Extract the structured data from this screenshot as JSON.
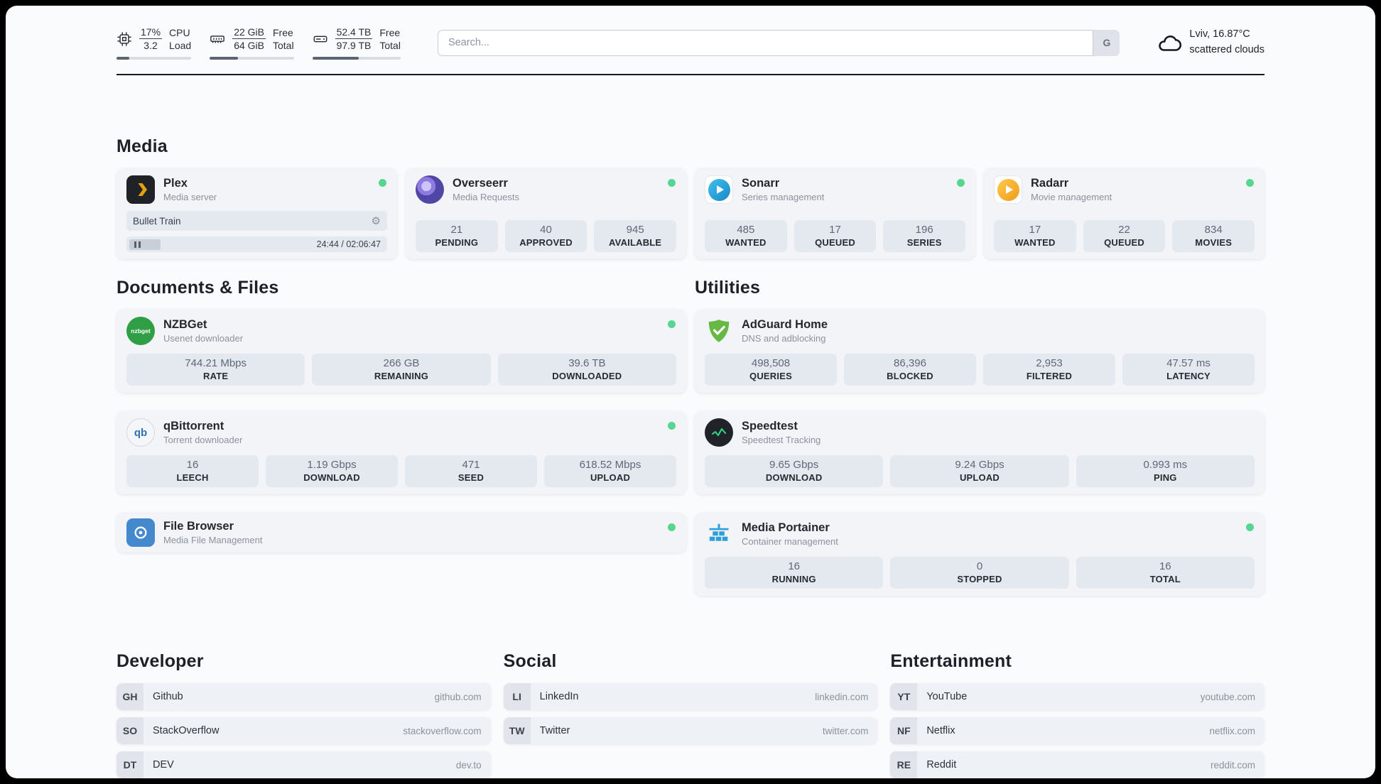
{
  "header": {
    "cpu": {
      "percent": "17%",
      "load": "3.2",
      "label_top": "CPU",
      "label_bottom": "Load",
      "bar_percent": 17
    },
    "ram": {
      "free": "22 GiB",
      "total": "64 GiB",
      "label_top": "Free",
      "label_bottom": "Total",
      "bar_percent": 34
    },
    "disk": {
      "free": "52.4 TB",
      "total": "97.9 TB",
      "label_top": "Free",
      "label_bottom": "Total",
      "bar_percent": 53
    },
    "search": {
      "placeholder": "Search...",
      "button_label": "G"
    },
    "weather": {
      "location": "Lviv, 16.87°C",
      "condition": "scattered clouds"
    }
  },
  "media": {
    "heading": "Media",
    "plex": {
      "name": "Plex",
      "subtitle": "Media server",
      "now_playing": "Bullet Train",
      "time": "24:44 / 02:06:47"
    },
    "overseerr": {
      "name": "Overseerr",
      "subtitle": "Media Requests",
      "stats": [
        {
          "value": "21",
          "label": "PENDING"
        },
        {
          "value": "40",
          "label": "APPROVED"
        },
        {
          "value": "945",
          "label": "AVAILABLE"
        }
      ]
    },
    "sonarr": {
      "name": "Sonarr",
      "subtitle": "Series management",
      "stats": [
        {
          "value": "485",
          "label": "WANTED"
        },
        {
          "value": "17",
          "label": "QUEUED"
        },
        {
          "value": "196",
          "label": "SERIES"
        }
      ]
    },
    "radarr": {
      "name": "Radarr",
      "subtitle": "Movie management",
      "stats": [
        {
          "value": "17",
          "label": "WANTED"
        },
        {
          "value": "22",
          "label": "QUEUED"
        },
        {
          "value": "834",
          "label": "MOVIES"
        }
      ]
    }
  },
  "documents": {
    "heading": "Documents & Files",
    "nzbget": {
      "name": "NZBGet",
      "subtitle": "Usenet downloader",
      "icon_text": "nzbget",
      "stats": [
        {
          "value": "744.21 Mbps",
          "label": "RATE"
        },
        {
          "value": "266 GB",
          "label": "REMAINING"
        },
        {
          "value": "39.6 TB",
          "label": "DOWNLOADED"
        }
      ]
    },
    "qbittorrent": {
      "name": "qBittorrent",
      "subtitle": "Torrent downloader",
      "icon_text": "qb",
      "stats": [
        {
          "value": "16",
          "label": "LEECH"
        },
        {
          "value": "1.19 Gbps",
          "label": "DOWNLOAD"
        },
        {
          "value": "471",
          "label": "SEED"
        },
        {
          "value": "618.52 Mbps",
          "label": "UPLOAD"
        }
      ]
    },
    "filebrowser": {
      "name": "File Browser",
      "subtitle": "Media File Management"
    }
  },
  "utilities": {
    "heading": "Utilities",
    "adguard": {
      "name": "AdGuard Home",
      "subtitle": "DNS and adblocking",
      "stats": [
        {
          "value": "498,508",
          "label": "QUERIES"
        },
        {
          "value": "86,396",
          "label": "BLOCKED"
        },
        {
          "value": "2,953",
          "label": "FILTERED"
        },
        {
          "value": "47.57 ms",
          "label": "LATENCY"
        }
      ]
    },
    "speedtest": {
      "name": "Speedtest",
      "subtitle": "Speedtest Tracking",
      "stats": [
        {
          "value": "9.65 Gbps",
          "label": "DOWNLOAD"
        },
        {
          "value": "9.24 Gbps",
          "label": "UPLOAD"
        },
        {
          "value": "0.993 ms",
          "label": "PING"
        }
      ]
    },
    "portainer": {
      "name": "Media Portainer",
      "subtitle": "Container management",
      "stats": [
        {
          "value": "16",
          "label": "RUNNING"
        },
        {
          "value": "0",
          "label": "STOPPED"
        },
        {
          "value": "16",
          "label": "TOTAL"
        }
      ]
    }
  },
  "bookmarks": {
    "developer": {
      "heading": "Developer",
      "items": [
        {
          "abbr": "GH",
          "name": "Github",
          "url": "github.com"
        },
        {
          "abbr": "SO",
          "name": "StackOverflow",
          "url": "stackoverflow.com"
        },
        {
          "abbr": "DT",
          "name": "DEV",
          "url": "dev.to"
        }
      ]
    },
    "social": {
      "heading": "Social",
      "items": [
        {
          "abbr": "LI",
          "name": "LinkedIn",
          "url": "linkedin.com"
        },
        {
          "abbr": "TW",
          "name": "Twitter",
          "url": "twitter.com"
        }
      ]
    },
    "entertainment": {
      "heading": "Entertainment",
      "items": [
        {
          "abbr": "YT",
          "name": "YouTube",
          "url": "youtube.com"
        },
        {
          "abbr": "NF",
          "name": "Netflix",
          "url": "netflix.com"
        },
        {
          "abbr": "RE",
          "name": "Reddit",
          "url": "reddit.com"
        }
      ]
    }
  },
  "icons": {
    "gear": "⚙"
  },
  "colors": {
    "status_online": "#56d68f",
    "plex_accent": "#e5a00d",
    "sonarr_accent": "#35bdf0",
    "radarr_accent": "#f5a623",
    "nzbget_green": "#2f9e44",
    "adguard_green": "#68b846",
    "speedtest_pulse": "#2fdc84",
    "portainer_blue": "#2e9fd8"
  }
}
